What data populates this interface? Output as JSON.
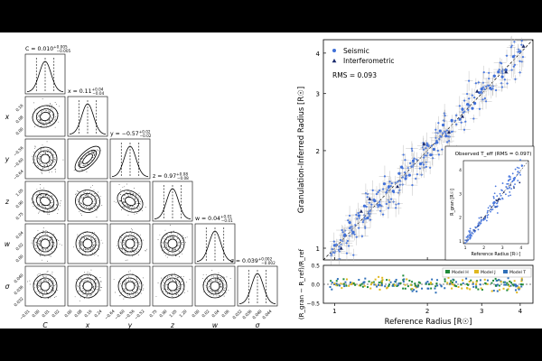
{
  "chart_data": [
    {
      "type": "corner",
      "parameters": [
        {
          "symbol": "C",
          "title": "C = 0.010",
          "sup": "+0.005",
          "sub": "−0.005",
          "ticks": [
            "−0.01",
            "0.00",
            "0.01",
            "0.02"
          ]
        },
        {
          "symbol": "x",
          "title": "x = 0.11",
          "sup": "+0.04",
          "sub": "−0.04",
          "ticks": [
            "0.00",
            "0.08",
            "0.16",
            "0.24"
          ]
        },
        {
          "symbol": "y",
          "title": "y = −0.57",
          "sup": "+0.02",
          "sub": "−0.02",
          "ticks": [
            "−0.64",
            "−0.60",
            "−0.56",
            "−0.52"
          ]
        },
        {
          "symbol": "z",
          "title": "z = 0.97",
          "sup": "+0.08",
          "sub": "−0.08",
          "ticks": [
            "0.75",
            "0.90",
            "1.05",
            "1.20"
          ]
        },
        {
          "symbol": "w",
          "title": "w = 0.04",
          "sup": "+0.01",
          "sub": "−0.01",
          "ticks": [
            "0.00",
            "0.02",
            "0.04",
            "0.06"
          ]
        },
        {
          "symbol": "σ",
          "title": "σ = 0.039",
          "sup": "+0.002",
          "sub": "−0.002",
          "ticks": [
            "0.032",
            "0.036",
            "0.040",
            "0.044"
          ]
        }
      ],
      "correlations": {
        "C-x": 0.2,
        "x-y": 0.85,
        "C-z": -0.3,
        "x-z": -0.1,
        "y-z": -0.35
      }
    },
    {
      "type": "scatter",
      "xlabel": "Reference Radius [R☉]",
      "ylabel": "Granulation-Inferred Radius [R☉]",
      "scale": "log",
      "xlim": [
        0.92,
        4.4
      ],
      "ylim": [
        0.92,
        4.4
      ],
      "x_ticks": [
        "1",
        "2",
        "3",
        "4"
      ],
      "y_ticks": [
        "1",
        "2",
        "3",
        "4"
      ],
      "annotation": "RMS = 0.093",
      "grid": false,
      "legend_position": "top-left",
      "series": [
        {
          "name": "Seismic",
          "marker": "circle",
          "color": "#3f6fd8",
          "points": [
            [
              1.0,
              1.02
            ],
            [
              1.08,
              1.1
            ],
            [
              1.15,
              1.12
            ],
            [
              1.2,
              1.26
            ],
            [
              1.28,
              1.24
            ],
            [
              1.35,
              1.4
            ],
            [
              1.4,
              1.36
            ],
            [
              1.5,
              1.55
            ],
            [
              1.55,
              1.5
            ],
            [
              1.62,
              1.7
            ],
            [
              1.7,
              1.64
            ],
            [
              1.8,
              1.86
            ],
            [
              1.9,
              1.82
            ],
            [
              2.0,
              2.08
            ],
            [
              2.1,
              2.02
            ],
            [
              2.2,
              2.3
            ],
            [
              2.3,
              2.22
            ],
            [
              2.4,
              2.48
            ],
            [
              2.55,
              2.5
            ],
            [
              2.7,
              2.78
            ],
            [
              2.85,
              2.8
            ],
            [
              3.0,
              3.1
            ],
            [
              3.2,
              3.12
            ],
            [
              3.4,
              3.5
            ],
            [
              3.6,
              3.55
            ],
            [
              3.8,
              3.9
            ],
            [
              4.0,
              4.05
            ],
            [
              1.25,
              1.35
            ],
            [
              1.75,
              1.68
            ],
            [
              2.25,
              2.4
            ],
            [
              2.8,
              2.7
            ],
            [
              3.3,
              3.4
            ],
            [
              1.45,
              1.58
            ],
            [
              2.05,
              1.94
            ],
            [
              2.6,
              2.68
            ],
            [
              3.5,
              3.38
            ],
            [
              1.12,
              1.2
            ],
            [
              1.65,
              1.78
            ],
            [
              2.15,
              2.12
            ],
            [
              2.95,
              3.02
            ]
          ]
        },
        {
          "name": "Interferometric",
          "marker": "triangle",
          "color": "#1a2a6c",
          "points": [
            [
              1.05,
              1.0
            ],
            [
              1.3,
              1.42
            ],
            [
              1.6,
              1.55
            ],
            [
              1.95,
              2.1
            ],
            [
              2.35,
              2.28
            ],
            [
              2.9,
              3.05
            ],
            [
              3.6,
              3.5
            ],
            [
              4.1,
              4.2
            ],
            [
              1.22,
              1.3
            ],
            [
              2.6,
              2.55
            ]
          ]
        }
      ],
      "one_to_one_line": true
    },
    {
      "type": "scatter",
      "title": "Observed T_eff (RMS = 0.097)",
      "xlabel": "Reference Radius [R☉]",
      "ylabel": "R_gran [R☉]",
      "x_ticks": [
        "1",
        "2",
        "3",
        "4"
      ],
      "y_ticks": [
        "1",
        "2",
        "3",
        "4"
      ],
      "xlim": [
        0.9,
        4.4
      ],
      "ylim": [
        0.9,
        4.4
      ]
    },
    {
      "type": "scatter",
      "ylabel": "(R_gran − R_ref)/R_ref",
      "xlabel": "Reference Radius [R☉]",
      "ylim": [
        -0.5,
        0.5
      ],
      "y_ticks": [
        "0.5",
        "0.0",
        "−0.5"
      ],
      "x_ticks": [
        "1",
        "2",
        "3",
        "4"
      ],
      "legend": [
        {
          "name": "Model H",
          "color": "#1f8a3a"
        },
        {
          "name": "Model J",
          "color": "#e0b81f"
        },
        {
          "name": "Model T",
          "color": "#2f6fb8"
        }
      ],
      "legend_position": "top-right"
    }
  ]
}
